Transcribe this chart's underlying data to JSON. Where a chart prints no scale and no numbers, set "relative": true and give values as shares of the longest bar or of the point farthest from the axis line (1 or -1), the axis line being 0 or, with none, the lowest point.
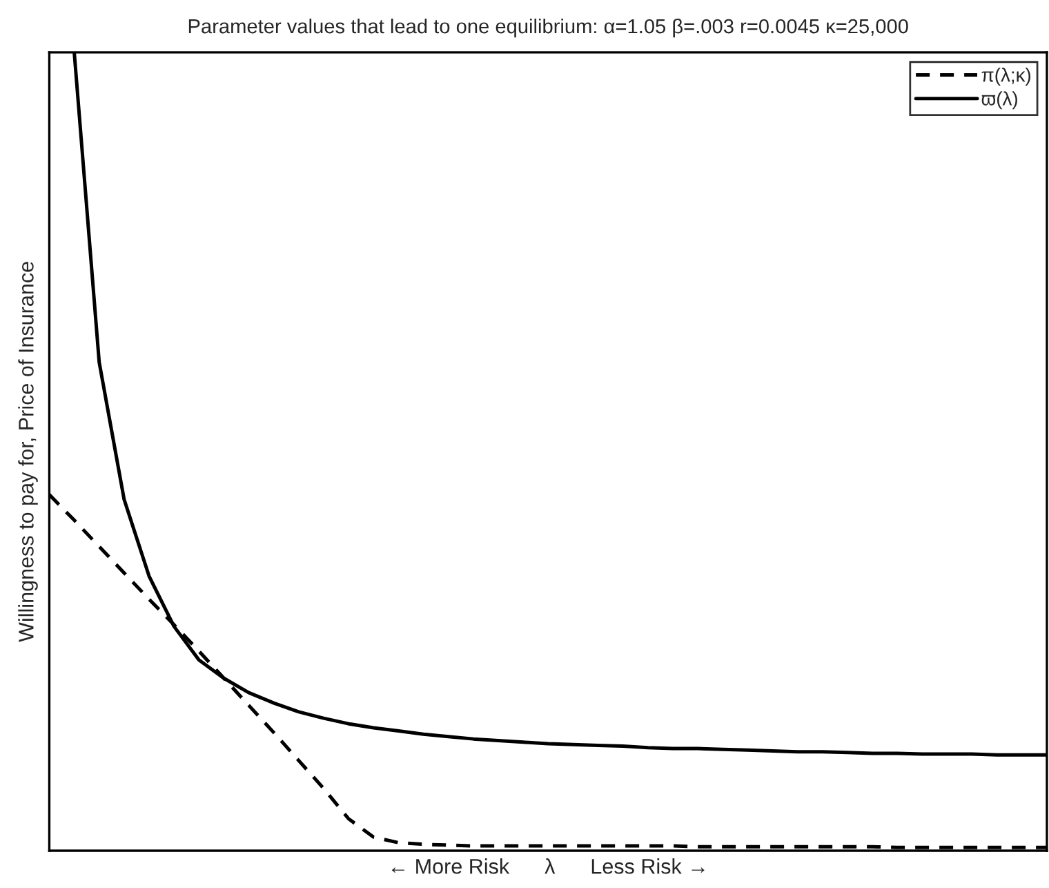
{
  "chart_data": {
    "type": "line",
    "title": "Parameter values that lead to one equilibrium: α=1.05 β=.003 r=0.0045 κ=25,000",
    "xlabel": "← More Risk      λ      Less Risk →",
    "ylabel": "Willingness to pay for, Price of Insurance",
    "relative": true,
    "legend": "top right",
    "marker": "none",
    "categories": [
      null,
      null,
      null,
      null,
      null,
      null,
      null,
      null,
      null,
      null,
      null,
      null,
      null,
      null,
      null,
      null,
      null,
      null,
      null,
      null,
      null,
      null,
      null,
      null,
      null,
      null,
      null,
      null,
      null,
      null,
      null,
      null,
      null,
      null,
      null,
      null,
      null,
      null,
      null,
      null,
      null
    ],
    "series": [
      {
        "name": "π(λ;κ)",
        "color": "#000000",
        "line_style": "dashed",
        "values": [
          0.446,
          0.414,
          0.381,
          0.348,
          0.315,
          0.283,
          0.25,
          0.216,
          0.182,
          0.148,
          0.113,
          0.078,
          0.04,
          0.017,
          0.01,
          0.008,
          0.007,
          0.006,
          0.006,
          0.006,
          0.006,
          0.006,
          0.006,
          0.006,
          0.006,
          0.006,
          0.005,
          0.005,
          0.005,
          0.005,
          0.005,
          0.005,
          0.005,
          0.005,
          0.004,
          0.004,
          0.004,
          0.004,
          0.004,
          0.004,
          0.004
        ]
      },
      {
        "name": "ϖ(λ)",
        "color": "#000000",
        "line_style": "solid",
        "values": [
          null,
          1.0,
          0.612,
          0.44,
          0.344,
          0.281,
          0.239,
          0.216,
          0.198,
          0.185,
          0.174,
          0.166,
          0.159,
          0.154,
          0.15,
          0.146,
          0.143,
          0.14,
          0.138,
          0.136,
          0.134,
          0.133,
          0.132,
          0.131,
          0.129,
          0.128,
          0.128,
          0.127,
          0.126,
          0.125,
          0.124,
          0.124,
          0.123,
          0.122,
          0.122,
          0.121,
          0.121,
          0.121,
          0.12,
          0.12,
          0.12
        ]
      }
    ]
  }
}
